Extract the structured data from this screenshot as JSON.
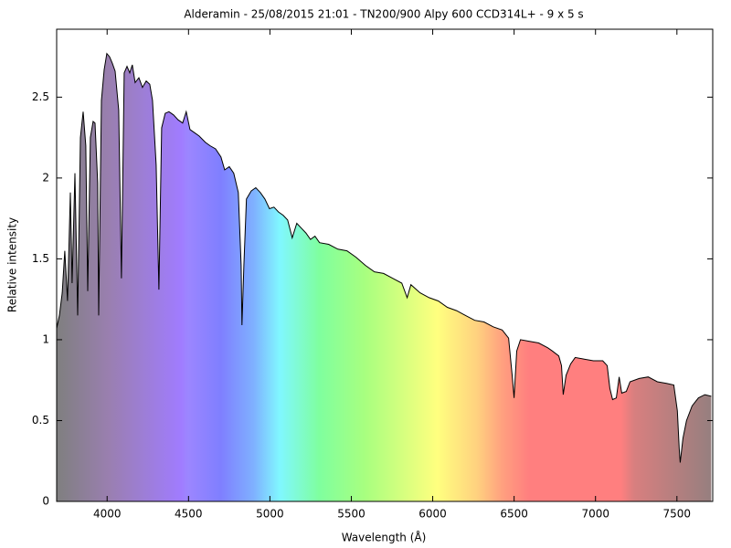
{
  "chart_data": {
    "type": "line",
    "title": "Alderamin - 25/08/2015 21:01 - TN200/900 Alpy 600 CCD314L+ - 9 x 5 s",
    "xlabel": "Wavelength (Å)",
    "ylabel": "Relative intensity",
    "color": "#000000",
    "x": [
      3690,
      3707,
      3724,
      3740,
      3757,
      3774,
      3785,
      3802,
      3819,
      3836,
      3853,
      3869,
      3881,
      3897,
      3914,
      3926,
      3942,
      3948,
      3965,
      3982,
      3998,
      4015,
      4032,
      4049,
      4071,
      4088,
      4105,
      4122,
      4139,
      4155,
      4172,
      4195,
      4217,
      4240,
      4262,
      4279,
      4301,
      4318,
      4335,
      4357,
      4380,
      4408,
      4436,
      4464,
      4486,
      4509,
      4537,
      4565,
      4604,
      4632,
      4666,
      4699,
      4722,
      4750,
      4778,
      4806,
      4823,
      4828,
      4840,
      4856,
      4885,
      4913,
      4941,
      4969,
      4997,
      5025,
      5053,
      5081,
      5109,
      5137,
      5165,
      5193,
      5221,
      5249,
      5277,
      5305,
      5361,
      5417,
      5473,
      5529,
      5586,
      5642,
      5698,
      5754,
      5810,
      5843,
      5866,
      5922,
      5978,
      6034,
      6090,
      6146,
      6202,
      6258,
      6315,
      6371,
      6427,
      6466,
      6488,
      6500,
      6516,
      6539,
      6595,
      6651,
      6707,
      6735,
      6774,
      6791,
      6802,
      6819,
      6847,
      6875,
      6931,
      6987,
      7044,
      7072,
      7088,
      7105,
      7128,
      7145,
      7161,
      7189,
      7212,
      7268,
      7324,
      7380,
      7436,
      7481,
      7503,
      7514,
      7520,
      7537,
      7559,
      7593,
      7632,
      7672,
      7711
    ],
    "values": [
      1.07,
      1.15,
      1.29,
      1.55,
      1.24,
      1.91,
      1.35,
      2.03,
      1.15,
      2.25,
      2.41,
      2.2,
      1.3,
      2.25,
      2.35,
      2.34,
      1.97,
      1.15,
      2.48,
      2.67,
      2.77,
      2.75,
      2.71,
      2.66,
      2.42,
      1.38,
      2.65,
      2.69,
      2.65,
      2.7,
      2.59,
      2.62,
      2.56,
      2.6,
      2.58,
      2.48,
      2.08,
      1.31,
      2.31,
      2.4,
      2.41,
      2.39,
      2.36,
      2.34,
      2.41,
      2.3,
      2.28,
      2.26,
      2.22,
      2.2,
      2.18,
      2.13,
      2.05,
      2.07,
      2.03,
      1.91,
      1.46,
      1.09,
      1.46,
      1.87,
      1.92,
      1.94,
      1.91,
      1.87,
      1.81,
      1.82,
      1.79,
      1.77,
      1.74,
      1.63,
      1.72,
      1.69,
      1.66,
      1.62,
      1.64,
      1.6,
      1.59,
      1.56,
      1.55,
      1.51,
      1.46,
      1.42,
      1.41,
      1.38,
      1.35,
      1.26,
      1.34,
      1.29,
      1.26,
      1.24,
      1.2,
      1.18,
      1.15,
      1.12,
      1.11,
      1.08,
      1.06,
      1.01,
      0.78,
      0.64,
      0.93,
      1.0,
      0.99,
      0.98,
      0.95,
      0.93,
      0.9,
      0.84,
      0.66,
      0.78,
      0.85,
      0.89,
      0.88,
      0.87,
      0.87,
      0.84,
      0.7,
      0.63,
      0.64,
      0.77,
      0.67,
      0.68,
      0.74,
      0.76,
      0.77,
      0.74,
      0.73,
      0.72,
      0.56,
      0.33,
      0.24,
      0.39,
      0.5,
      0.59,
      0.64,
      0.66,
      0.65
    ],
    "xlim": [
      3690,
      7720
    ],
    "ylim": [
      0,
      2.92
    ],
    "xticks": [
      4000,
      4500,
      5000,
      5500,
      6000,
      6500,
      7000,
      7500
    ],
    "yticks": [
      0,
      0.5,
      1,
      1.5,
      2,
      2.5
    ]
  }
}
